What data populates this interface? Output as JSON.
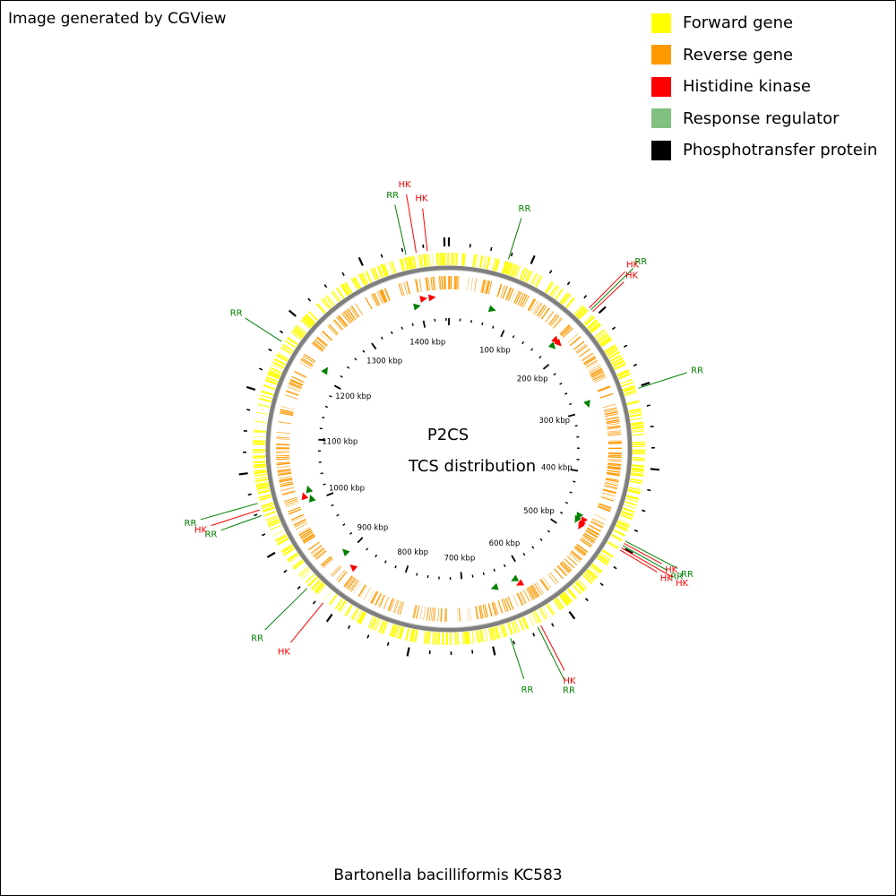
{
  "credit": "Image generated by CGView",
  "organism": "Bartonella bacilliformis KC583",
  "center_title": "P2CS",
  "center_subtitle": "TCS distribution",
  "colors": {
    "forward": "#ffff00",
    "reverse": "#ff9900",
    "hk": "#ff0000",
    "rr": "#008000",
    "legend_rr": "#80c080",
    "phospho": "#000000",
    "backbone": "#7f7f7f"
  },
  "legend": [
    {
      "label": "Forward gene",
      "color": "#ffff00"
    },
    {
      "label": "Reverse gene",
      "color": "#ff9900"
    },
    {
      "label": "Histidine kinase",
      "color": "#ff0000"
    },
    {
      "label": "Response regulator",
      "color": "#80c080"
    },
    {
      "label": "Phosphotransfer protein",
      "color": "#000000"
    }
  ],
  "genome_kbp": 1445,
  "ticks": [
    {
      "kbp": 100,
      "label": "100 kbp"
    },
    {
      "kbp": 200,
      "label": "200 kbp"
    },
    {
      "kbp": 300,
      "label": "300 kbp"
    },
    {
      "kbp": 400,
      "label": "400 kbp"
    },
    {
      "kbp": 500,
      "label": "500 kbp"
    },
    {
      "kbp": 600,
      "label": "600 kbp"
    },
    {
      "kbp": 700,
      "label": "700 kbp"
    },
    {
      "kbp": 800,
      "label": "800 kbp"
    },
    {
      "kbp": 900,
      "label": "900 kbp"
    },
    {
      "kbp": 1000,
      "label": "1000 kbp"
    },
    {
      "kbp": 1100,
      "label": "1100 kbp"
    },
    {
      "kbp": 1200,
      "label": "1200 kbp"
    },
    {
      "kbp": 1300,
      "label": "1300 kbp"
    },
    {
      "kbp": 1400,
      "label": "1400 kbp"
    }
  ],
  "tcs_labels": [
    {
      "text": "RR",
      "type": "rr",
      "kbp": 70
    },
    {
      "text": "HK",
      "type": "hk",
      "kbp": 180
    },
    {
      "text": "RR",
      "type": "rr",
      "kbp": 183
    },
    {
      "text": "HK",
      "type": "hk",
      "kbp": 186
    },
    {
      "text": "RR",
      "type": "rr",
      "kbp": 290
    },
    {
      "text": "RR",
      "type": "rr",
      "kbp": 472
    },
    {
      "text": "HK",
      "type": "hk",
      "kbp": 475
    },
    {
      "text": "RR",
      "type": "rr",
      "kbp": 478
    },
    {
      "text": "HK",
      "type": "hk",
      "kbp": 481
    },
    {
      "text": "HK",
      "type": "hk",
      "kbp": 484
    },
    {
      "text": "HK",
      "type": "hk",
      "kbp": 612
    },
    {
      "text": "RR",
      "type": "rr",
      "kbp": 616
    },
    {
      "text": "RR",
      "type": "rr",
      "kbp": 650
    },
    {
      "text": "HK",
      "type": "hk",
      "kbp": 880
    },
    {
      "text": "RR",
      "type": "rr",
      "kbp": 905
    },
    {
      "text": "RR",
      "type": "rr",
      "kbp": 1005
    },
    {
      "text": "HK",
      "type": "hk",
      "kbp": 1012
    },
    {
      "text": "RR",
      "type": "rr",
      "kbp": 1020
    },
    {
      "text": "RR",
      "type": "rr",
      "kbp": 1215
    },
    {
      "text": "RR",
      "type": "rr",
      "kbp": 1395
    },
    {
      "text": "HK",
      "type": "hk",
      "kbp": 1407
    },
    {
      "text": "HK",
      "type": "hk",
      "kbp": 1420
    }
  ]
}
